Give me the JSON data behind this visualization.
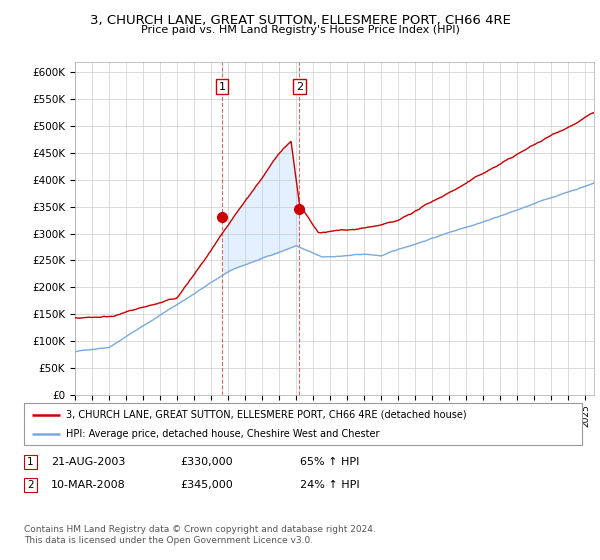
{
  "title": "3, CHURCH LANE, GREAT SUTTON, ELLESMERE PORT, CH66 4RE",
  "subtitle": "Price paid vs. HM Land Registry's House Price Index (HPI)",
  "ylabel_ticks": [
    "£0",
    "£50K",
    "£100K",
    "£150K",
    "£200K",
    "£250K",
    "£300K",
    "£350K",
    "£400K",
    "£450K",
    "£500K",
    "£550K",
    "£600K"
  ],
  "ytick_vals": [
    0,
    50000,
    100000,
    150000,
    200000,
    250000,
    300000,
    350000,
    400000,
    450000,
    500000,
    550000,
    600000
  ],
  "purchase1": {
    "date_num": 2003.64,
    "price": 330000,
    "label": "1"
  },
  "purchase2": {
    "date_num": 2008.19,
    "price": 345000,
    "label": "2"
  },
  "legend_line1": "3, CHURCH LANE, GREAT SUTTON, ELLESMERE PORT, CH66 4RE (detached house)",
  "legend_line2": "HPI: Average price, detached house, Cheshire West and Chester",
  "table_row1": [
    "1",
    "21-AUG-2003",
    "£330,000",
    "65% ↑ HPI"
  ],
  "table_row2": [
    "2",
    "10-MAR-2008",
    "£345,000",
    "24% ↑ HPI"
  ],
  "footer": "Contains HM Land Registry data © Crown copyright and database right 2024.\nThis data is licensed under the Open Government Licence v3.0.",
  "line_color_red": "#cc0000",
  "line_color_blue": "#7aaadd",
  "shade_color": "#ddeeff",
  "vline_color": "#cc0000",
  "xmin": 1995.0,
  "xmax": 2025.5,
  "ymin": 0,
  "ymax": 620000
}
